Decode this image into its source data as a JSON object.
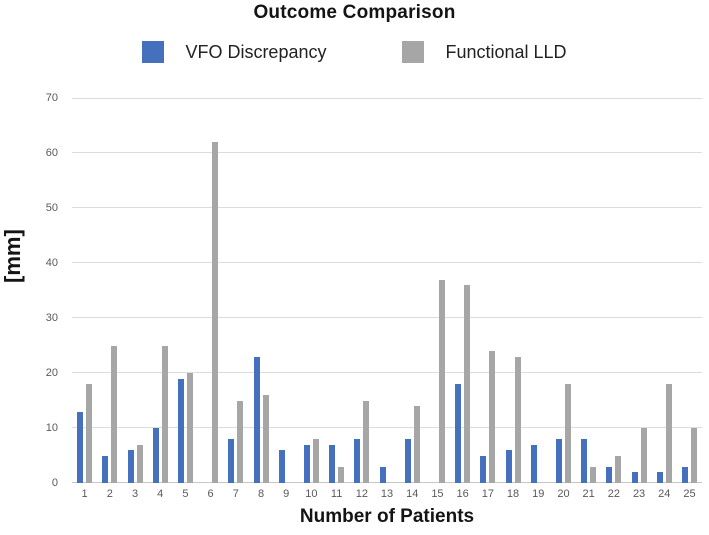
{
  "title": "Outcome Comparison",
  "legend": {
    "items": [
      {
        "label": "VFO Discrepancy",
        "color": "#4470be"
      },
      {
        "label": "Functional LLD",
        "color": "#a6a6a6"
      }
    ]
  },
  "chart_data": {
    "type": "bar",
    "title": "Outcome Comparison",
    "xlabel": "Number of Patients",
    "ylabel": "[mm]",
    "ylim": [
      0,
      70
    ],
    "yticks": [
      0,
      10,
      20,
      30,
      40,
      50,
      60,
      70
    ],
    "grid": true,
    "legend_position": "top",
    "categories": [
      "1",
      "2",
      "3",
      "4",
      "5",
      "6",
      "7",
      "8",
      "9",
      "10",
      "11",
      "12",
      "13",
      "14",
      "15",
      "16",
      "17",
      "18",
      "19",
      "20",
      "21",
      "22",
      "23",
      "24",
      "25"
    ],
    "series": [
      {
        "name": "VFO Discrepancy",
        "color": "#4470be",
        "values": [
          13,
          5,
          6,
          10,
          19,
          0,
          8,
          23,
          6,
          7,
          7,
          8,
          3,
          8,
          0,
          18,
          5,
          6,
          7,
          8,
          8,
          3,
          2,
          2,
          3
        ]
      },
      {
        "name": "Functional LLD",
        "color": "#a6a6a6",
        "values": [
          18,
          25,
          7,
          25,
          20,
          62,
          15,
          16,
          0,
          8,
          3,
          15,
          0,
          14,
          37,
          36,
          24,
          23,
          0,
          18,
          3,
          5,
          10,
          18,
          10
        ]
      }
    ]
  }
}
